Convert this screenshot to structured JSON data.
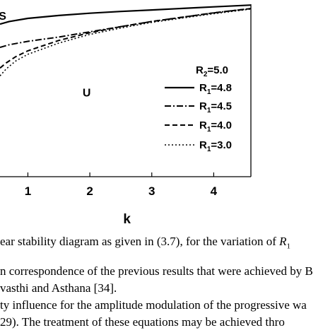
{
  "chart_data": {
    "type": "line",
    "xlabel": "k",
    "ylabel": "",
    "xlim": [
      0.55,
      4.6
    ],
    "ylim": [
      0.0,
      1.0
    ],
    "xticks": [
      1,
      2,
      3,
      4
    ],
    "x_tick_labels": [
      "1",
      "2",
      "3",
      "4"
    ],
    "grid": false,
    "region_labels": [
      {
        "text": "S",
        "x": 0.5,
        "y": 0.935
      },
      {
        "text": "U",
        "x": 1.95,
        "y": 0.49
      }
    ],
    "legend": {
      "placement": "right",
      "header_main": "R",
      "header_sub": "2",
      "header_value": "=5.0"
    },
    "series": [
      {
        "name_main": "R",
        "name_sub": "1",
        "name_value": "=4.8",
        "style": "solid",
        "x": [
          0.55,
          0.7,
          1.0,
          1.5,
          2.0,
          2.5,
          3.0,
          3.5,
          4.0,
          4.6
        ],
        "y": [
          0.885,
          0.9,
          0.918,
          0.935,
          0.948,
          0.958,
          0.967,
          0.976,
          0.985,
          0.995
        ]
      },
      {
        "name_main": "R",
        "name_sub": "1",
        "name_value": "=4.5",
        "style": "dashdot",
        "x": [
          0.55,
          0.7,
          1.0,
          1.5,
          2.0,
          2.5,
          3.0,
          3.5,
          4.0,
          4.6
        ],
        "y": [
          0.75,
          0.765,
          0.785,
          0.81,
          0.84,
          0.87,
          0.9,
          0.925,
          0.95,
          0.975
        ]
      },
      {
        "name_main": "R",
        "name_sub": "1",
        "name_value": "=4.0",
        "style": "dashed",
        "x": [
          0.55,
          0.65,
          0.8,
          1.0,
          1.5,
          2.0,
          2.5,
          3.0,
          3.5,
          4.0,
          4.6
        ],
        "y": [
          0.63,
          0.66,
          0.695,
          0.73,
          0.79,
          0.835,
          0.87,
          0.9,
          0.925,
          0.95,
          0.975
        ]
      },
      {
        "name_main": "R",
        "name_sub": "1",
        "name_value": "=3.0",
        "style": "dotted",
        "x": [
          0.55,
          0.65,
          0.8,
          1.0,
          1.5,
          2.0,
          2.5,
          3.0,
          3.5,
          4.0,
          4.6
        ],
        "y": [
          0.585,
          0.625,
          0.67,
          0.71,
          0.775,
          0.825,
          0.862,
          0.895,
          0.92,
          0.945,
          0.972
        ]
      }
    ]
  },
  "caption": {
    "text": "ear stability diagram as given in (3.7), for the variation of ",
    "var_main": "R",
    "var_sub": "1"
  },
  "body": {
    "line1": "n correspondence of the previous results that were achieved by B",
    "line2": "vasthi and Asthana [34].",
    "line3": "ty influence for the amplitude modulation of the progressive wa",
    "line4": "29).  The treatment of these equations may be achieved thro"
  }
}
